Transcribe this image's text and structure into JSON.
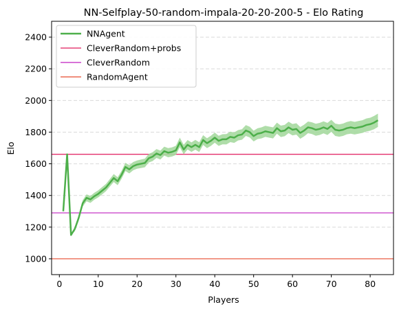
{
  "chart_data": {
    "type": "line",
    "title": "NN-Selfplay-50-random-impala-20-20-200-5 - Elo Rating",
    "xlabel": "Players",
    "ylabel": "Elo",
    "xlim": [
      -2,
      86
    ],
    "ylim": [
      900,
      2500
    ],
    "x_ticks": [
      0,
      10,
      20,
      30,
      40,
      50,
      60,
      70,
      80
    ],
    "y_ticks": [
      1000,
      1200,
      1400,
      1600,
      1800,
      2000,
      2200,
      2400
    ],
    "grid": "horizontal dashed",
    "legend": "top-left",
    "series": [
      {
        "name": "NNAgent",
        "color": "#4daf4a",
        "band_color": "#a6d9a0",
        "x": [
          1,
          2,
          3,
          4,
          5,
          6,
          7,
          8,
          9,
          10,
          11,
          12,
          13,
          14,
          15,
          16,
          17,
          18,
          19,
          20,
          21,
          22,
          23,
          24,
          25,
          26,
          27,
          28,
          29,
          30,
          31,
          32,
          33,
          34,
          35,
          36,
          37,
          38,
          39,
          40,
          41,
          42,
          43,
          44,
          45,
          46,
          47,
          48,
          49,
          50,
          51,
          52,
          53,
          54,
          55,
          56,
          57,
          58,
          59,
          60,
          61,
          62,
          63,
          64,
          65,
          66,
          67,
          68,
          69,
          70,
          71,
          72,
          73,
          74,
          75,
          76,
          77,
          78,
          79,
          80,
          81,
          82
        ],
        "y": [
          1300,
          1660,
          1150,
          1190,
          1260,
          1350,
          1385,
          1375,
          1395,
          1410,
          1430,
          1450,
          1480,
          1510,
          1490,
          1530,
          1580,
          1565,
          1585,
          1595,
          1600,
          1605,
          1635,
          1645,
          1665,
          1655,
          1680,
          1670,
          1675,
          1685,
          1735,
          1690,
          1720,
          1705,
          1720,
          1705,
          1750,
          1730,
          1745,
          1765,
          1745,
          1755,
          1755,
          1770,
          1765,
          1780,
          1785,
          1810,
          1800,
          1775,
          1790,
          1795,
          1805,
          1800,
          1795,
          1825,
          1805,
          1810,
          1830,
          1815,
          1820,
          1795,
          1810,
          1830,
          1825,
          1815,
          1820,
          1830,
          1820,
          1840,
          1815,
          1810,
          1815,
          1825,
          1830,
          1825,
          1830,
          1835,
          1845,
          1850,
          1860,
          1875
        ],
        "band_halfwidth": [
          0,
          0,
          0,
          15,
          18,
          20,
          22,
          22,
          22,
          22,
          23,
          23,
          24,
          25,
          25,
          25,
          26,
          26,
          26,
          26,
          27,
          27,
          27,
          28,
          28,
          28,
          28,
          29,
          29,
          29,
          30,
          30,
          30,
          30,
          31,
          31,
          31,
          31,
          32,
          32,
          32,
          32,
          33,
          33,
          33,
          33,
          33,
          34,
          34,
          34,
          34,
          35,
          35,
          35,
          35,
          35,
          36,
          36,
          36,
          36,
          36,
          37,
          37,
          37,
          37,
          38,
          38,
          38,
          38,
          38,
          39,
          39,
          39,
          39,
          40,
          40,
          40,
          40,
          41,
          41,
          42,
          42
        ]
      },
      {
        "name": "CleverRandom+probs",
        "color": "#e0195b",
        "y": 1660
      },
      {
        "name": "CleverRandom",
        "color": "#bf1fbf",
        "y": 1290
      },
      {
        "name": "RandomAgent",
        "color": "#e8492e",
        "y": 1000
      }
    ]
  }
}
